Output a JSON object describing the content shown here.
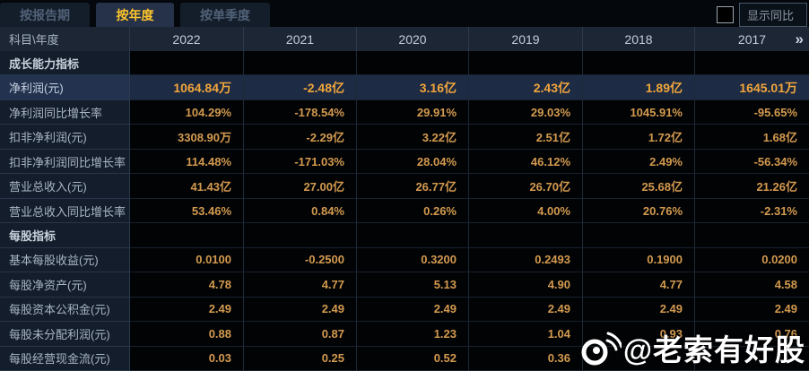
{
  "tabs": [
    {
      "label": "按报告期",
      "active": false
    },
    {
      "label": "按年度",
      "active": true
    },
    {
      "label": "按单季度",
      "active": false
    }
  ],
  "controls": {
    "show_yoy_label": "显示同比",
    "checkbox_checked": false
  },
  "table": {
    "corner_header": "科目\\年度",
    "years": [
      "2022",
      "2021",
      "2020",
      "2019",
      "2018",
      "2017"
    ],
    "more_icon": "»",
    "rows": [
      {
        "type": "section",
        "highlight": false,
        "label": "成长能力指标",
        "values": [
          "",
          "",
          "",
          "",
          "",
          ""
        ]
      },
      {
        "type": "data",
        "highlight": true,
        "label": "净利润(元)",
        "values": [
          "1064.84万",
          "-2.48亿",
          "3.16亿",
          "2.43亿",
          "1.89亿",
          "1645.01万"
        ]
      },
      {
        "type": "data",
        "highlight": false,
        "label": "净利润同比增长率",
        "values": [
          "104.29%",
          "-178.54%",
          "29.91%",
          "29.03%",
          "1045.91%",
          "-95.65%"
        ]
      },
      {
        "type": "data",
        "highlight": false,
        "label": "扣非净利润(元)",
        "values": [
          "3308.90万",
          "-2.29亿",
          "3.22亿",
          "2.51亿",
          "1.72亿",
          "1.68亿"
        ]
      },
      {
        "type": "data",
        "highlight": false,
        "label": "扣非净利润同比增长率",
        "values": [
          "114.48%",
          "-171.03%",
          "28.04%",
          "46.12%",
          "2.49%",
          "-56.34%"
        ]
      },
      {
        "type": "data",
        "highlight": false,
        "label": "营业总收入(元)",
        "values": [
          "41.43亿",
          "27.00亿",
          "26.77亿",
          "26.70亿",
          "25.68亿",
          "21.26亿"
        ]
      },
      {
        "type": "data",
        "highlight": false,
        "label": "营业总收入同比增长率",
        "values": [
          "53.46%",
          "0.84%",
          "0.26%",
          "4.00%",
          "20.76%",
          "-2.31%"
        ]
      },
      {
        "type": "section",
        "highlight": false,
        "label": "每股指标",
        "values": [
          "",
          "",
          "",
          "",
          "",
          ""
        ]
      },
      {
        "type": "data",
        "highlight": false,
        "label": "基本每股收益(元)",
        "values": [
          "0.0100",
          "-0.2500",
          "0.3200",
          "0.2493",
          "0.1900",
          "0.0200"
        ]
      },
      {
        "type": "data",
        "highlight": false,
        "label": "每股净资产(元)",
        "values": [
          "4.78",
          "4.77",
          "5.13",
          "4.90",
          "4.77",
          "4.58"
        ]
      },
      {
        "type": "data",
        "highlight": false,
        "label": "每股资本公积金(元)",
        "values": [
          "2.49",
          "2.49",
          "2.49",
          "2.49",
          "2.49",
          "2.49"
        ]
      },
      {
        "type": "data",
        "highlight": false,
        "label": "每股未分配利润(元)",
        "values": [
          "0.88",
          "0.87",
          "1.23",
          "1.04",
          "0.93",
          "0.76"
        ]
      },
      {
        "type": "data",
        "highlight": false,
        "label": "每股经营现金流(元)",
        "values": [
          "0.03",
          "0.25",
          "0.52",
          "0.36",
          "",
          ""
        ]
      }
    ]
  },
  "watermark": {
    "text": "@老索有好股"
  },
  "colors": {
    "accent_gold": "#fdc52c",
    "value_orange": "#d39a4f",
    "highlight_row_bg": "#1d2b45",
    "highlight_value": "#f1a63b",
    "label_col_bg": "#131d2b",
    "header_bg": "#1c2634"
  }
}
